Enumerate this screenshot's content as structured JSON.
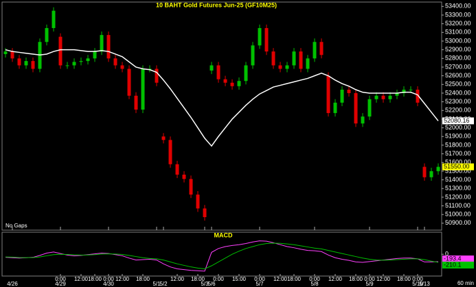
{
  "chart_data": [
    {
      "type": "candlestick",
      "title": "10 BAHT Gold Futures Jun-25 (GF10M25)",
      "note": "No Gaps",
      "interval": "60 min",
      "up_color": "#00c000",
      "down_color": "#e00000",
      "open": [
        52850,
        52880,
        52800,
        52720,
        52770,
        52680,
        52990,
        53150,
        53050,
        52720,
        52720,
        52760,
        52770,
        52800,
        52880,
        53070,
        52800,
        52720,
        52680,
        52370,
        52210,
        52680,
        52680,
        51900,
        51860,
        51580,
        51460,
        51410,
        51230,
        51070,
        52660,
        52720,
        52560,
        52520,
        52480,
        52540,
        52720,
        52950,
        53150,
        52880,
        52720,
        52680,
        52720,
        52880,
        52680,
        52800,
        52990,
        52600,
        52170,
        52290,
        52440,
        52400,
        52050,
        52130,
        52330,
        52370,
        52330,
        52370,
        52400,
        52440,
        52440,
        51550,
        51430,
        51500
      ],
      "high": [
        52920,
        52920,
        52840,
        52810,
        52810,
        53030,
        53190,
        53390,
        53090,
        52760,
        52800,
        52810,
        52840,
        52920,
        53110,
        53110,
        52840,
        52760,
        52720,
        52410,
        52720,
        52720,
        52720,
        51940,
        51900,
        51620,
        51500,
        51450,
        51270,
        51110,
        52760,
        52760,
        52600,
        52560,
        52580,
        52760,
        52990,
        53190,
        53190,
        52920,
        52760,
        52760,
        52920,
        52920,
        52840,
        53030,
        53030,
        52640,
        52330,
        52480,
        52480,
        52440,
        52170,
        52370,
        52410,
        52410,
        52410,
        52440,
        52480,
        52480,
        52480,
        51590,
        51540,
        51590
      ],
      "low": [
        52810,
        52760,
        52680,
        52680,
        52640,
        52640,
        52950,
        53110,
        52680,
        52680,
        52680,
        52720,
        52730,
        52760,
        52840,
        52760,
        52680,
        52640,
        52330,
        52170,
        52170,
        52640,
        52480,
        51820,
        51540,
        51420,
        51370,
        51190,
        51030,
        50930,
        52620,
        52520,
        52480,
        52440,
        52440,
        52500,
        52680,
        52910,
        52840,
        52680,
        52640,
        52640,
        52680,
        52640,
        52640,
        52760,
        52800,
        52130,
        52130,
        52250,
        52360,
        52010,
        52010,
        52090,
        52290,
        52290,
        52290,
        52330,
        52360,
        52400,
        52250,
        51390,
        51390,
        51460
      ],
      "close": [
        52880,
        52800,
        52720,
        52770,
        52680,
        52990,
        53150,
        53350,
        52720,
        52720,
        52760,
        52770,
        52800,
        52880,
        53070,
        52800,
        52720,
        52680,
        52370,
        52210,
        52680,
        52680,
        52520,
        51860,
        51580,
        51460,
        51410,
        51230,
        51070,
        50970,
        52720,
        52560,
        52520,
        52480,
        52540,
        52720,
        52950,
        53150,
        52880,
        52720,
        52680,
        52720,
        52880,
        52680,
        52800,
        52990,
        52840,
        52170,
        52290,
        52440,
        52400,
        52050,
        52130,
        52330,
        52370,
        52330,
        52370,
        52400,
        52440,
        52440,
        52290,
        51430,
        51500,
        51550
      ],
      "last_price_label": "51550.00",
      "overlay": {
        "color": "#ffffff",
        "values": [
          52900,
          52880,
          52870,
          52860,
          52850,
          52840,
          52850,
          52880,
          52900,
          52900,
          52900,
          52890,
          52880,
          52880,
          52890,
          52880,
          52850,
          52820,
          52760,
          52700,
          52680,
          52670,
          52640,
          52550,
          52450,
          52340,
          52230,
          52120,
          52000,
          51880,
          51790,
          51900,
          52000,
          52100,
          52180,
          52260,
          52330,
          52390,
          52430,
          52470,
          52490,
          52510,
          52530,
          52550,
          52570,
          52600,
          52630,
          52600,
          52550,
          52510,
          52480,
          52440,
          52410,
          52400,
          52400,
          52400,
          52400,
          52400,
          52410,
          52410,
          52380,
          52280,
          52180,
          52080.16
        ]
      },
      "ylim": [
        50820,
        53450
      ],
      "yticks": [
        {
          "value": 50900,
          "label": "50900.00"
        },
        {
          "value": 51000,
          "label": "51000.00"
        },
        {
          "value": 51100,
          "label": "51100.00"
        },
        {
          "value": 51200,
          "label": "51200.00"
        },
        {
          "value": 51300,
          "label": "51300.00"
        },
        {
          "value": 51400,
          "label": "51400.00"
        },
        {
          "value": 51500,
          "label": "51500.00"
        },
        {
          "value": 51600,
          "label": "51600.00"
        },
        {
          "value": 51700,
          "label": "51700.00"
        },
        {
          "value": 51800,
          "label": "51800.00"
        },
        {
          "value": 51900,
          "label": "51900.00"
        },
        {
          "value": 52000,
          "label": "52000.00"
        },
        {
          "value": 52100,
          "label": "52100.00"
        },
        {
          "value": 52200,
          "label": "52200.00"
        },
        {
          "value": 52300,
          "label": "52300.00"
        },
        {
          "value": 52400,
          "label": "52400.00"
        },
        {
          "value": 52500,
          "label": "52500.00"
        },
        {
          "value": 52600,
          "label": "52600.00"
        },
        {
          "value": 52700,
          "label": "52700.00"
        },
        {
          "value": 52800,
          "label": "52800.00"
        },
        {
          "value": 52900,
          "label": "52900.00"
        },
        {
          "value": 53000,
          "label": "53000.00"
        },
        {
          "value": 53100,
          "label": "53100.00"
        },
        {
          "value": 53200,
          "label": "53200.00"
        },
        {
          "value": 53300,
          "label": "53300.00"
        },
        {
          "value": 53400,
          "label": "53400.00"
        }
      ],
      "xtick_times": [
        {
          "value": 8,
          "label": "0:00"
        },
        {
          "value": 11,
          "label": "12:00"
        },
        {
          "value": 13,
          "label": "18:00"
        },
        {
          "value": 15,
          "label": "0:00"
        },
        {
          "value": 17,
          "label": "12:00"
        },
        {
          "value": 20,
          "label": "18:00"
        },
        {
          "value": 25,
          "label": "12:00"
        },
        {
          "value": 28,
          "label": "18:00"
        },
        {
          "value": 31,
          "label": "0:00"
        },
        {
          "value": 34,
          "label": "15:00"
        },
        {
          "value": 37,
          "label": "0:00"
        },
        {
          "value": 40,
          "label": "12:00"
        },
        {
          "value": 42,
          "label": "18:00"
        },
        {
          "value": 45,
          "label": "0:00"
        },
        {
          "value": 48,
          "label": "12:00"
        },
        {
          "value": 51,
          "label": "18:00"
        },
        {
          "value": 53,
          "label": "0:00"
        },
        {
          "value": 55,
          "label": "12:00"
        },
        {
          "value": 58,
          "label": "18:00"
        },
        {
          "value": 60,
          "label": "0:00"
        }
      ],
      "xtick_dates": [
        {
          "value": 1,
          "label": "4/26"
        },
        {
          "value": 8,
          "label": "4/29"
        },
        {
          "value": 15,
          "label": "4/30"
        },
        {
          "value": 22,
          "label": "5/1"
        },
        {
          "value": 23,
          "label": "5/2"
        },
        {
          "value": 29,
          "label": "5/3"
        },
        {
          "value": 30,
          "label": "5/6"
        },
        {
          "value": 37,
          "label": "5/7"
        },
        {
          "value": 45,
          "label": "5/8"
        },
        {
          "value": 53,
          "label": "5/9"
        },
        {
          "value": 60,
          "label": "5/10"
        },
        {
          "value": 61,
          "label": "5/13"
        }
      ]
    },
    {
      "type": "line",
      "title": "MACD",
      "series": [
        {
          "color": "#ff40ff",
          "values": [
            -80,
            -90,
            -100,
            -90,
            -80,
            -30,
            30,
            60,
            20,
            -20,
            -40,
            -30,
            -10,
            10,
            30,
            20,
            -10,
            -40,
            -100,
            -150,
            -140,
            -130,
            -150,
            -250,
            -330,
            -380,
            -400,
            -420,
            -430,
            -440,
            50,
            150,
            200,
            230,
            250,
            280,
            320,
            350,
            340,
            300,
            250,
            200,
            170,
            130,
            100,
            90,
            70,
            -20,
            -90,
            -130,
            -160,
            -200,
            -210,
            -190,
            -170,
            -150,
            -130,
            -110,
            -100,
            -100,
            -120,
            -200,
            -200,
            -193.4
          ]
        },
        {
          "color": "#00c000",
          "values": [
            -70,
            -75,
            -85,
            -88,
            -85,
            -70,
            -40,
            -10,
            0,
            -5,
            -15,
            -20,
            -18,
            -10,
            5,
            10,
            5,
            -5,
            -30,
            -60,
            -90,
            -110,
            -120,
            -150,
            -200,
            -250,
            -290,
            -330,
            -360,
            -380,
            -300,
            -200,
            -100,
            0,
            80,
            150,
            200,
            250,
            280,
            290,
            285,
            270,
            250,
            220,
            190,
            160,
            140,
            100,
            60,
            20,
            -20,
            -60,
            -100,
            -130,
            -150,
            -155,
            -150,
            -140,
            -130,
            -120,
            -120,
            -140,
            -180,
            -210.1
          ]
        }
      ],
      "ylim": [
        -550,
        450
      ],
      "yticks": [
        0
      ]
    }
  ]
}
